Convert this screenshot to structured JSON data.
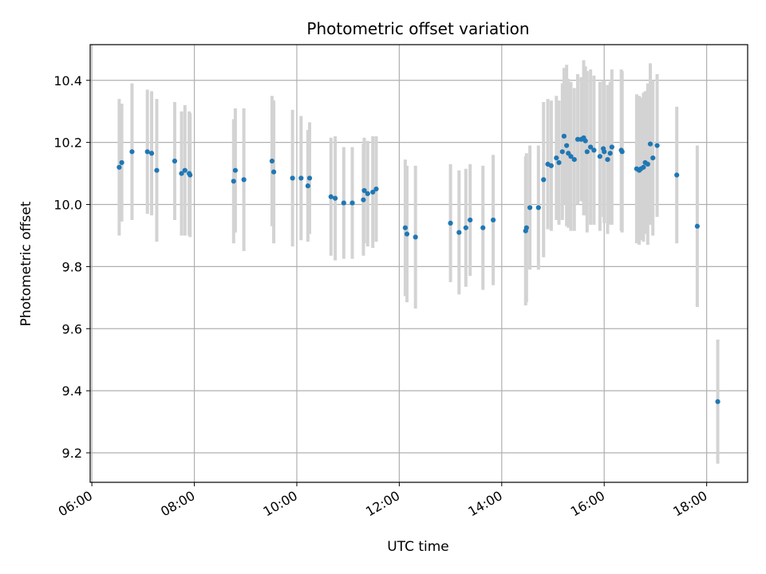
{
  "chart_data": {
    "type": "scatter",
    "title": "Photometric offset variation",
    "xlabel": "UTC time",
    "ylabel": "Photometric offset",
    "xlim": [
      "05:58",
      "18:48"
    ],
    "ylim": [
      9.105,
      10.515
    ],
    "x_ticks": [
      "06:00",
      "08:00",
      "10:00",
      "12:00",
      "14:00",
      "16:00",
      "18:00"
    ],
    "y_ticks": [
      "9.2",
      "9.4",
      "9.6",
      "9.8",
      "10.0",
      "10.2",
      "10.4"
    ],
    "grid": true,
    "marker_color": "#1f77b4",
    "errorbar_color": "#d3d3d3",
    "series": [
      {
        "x": [
          "06:32",
          "06:35",
          "06:47",
          "07:05",
          "07:10",
          "07:16",
          "07:37",
          "07:45",
          "07:49",
          "07:54",
          "07:55",
          "08:46",
          "08:48",
          "08:58",
          "09:31",
          "09:33",
          "09:55",
          "10:05",
          "10:13",
          "10:15",
          "10:40",
          "10:45",
          "10:55",
          "11:05",
          "11:18",
          "11:19",
          "11:23",
          "11:29",
          "11:33",
          "12:07",
          "12:09",
          "12:19",
          "13:00",
          "13:10",
          "13:18",
          "13:23",
          "13:38",
          "13:50",
          "14:28",
          "14:29",
          "14:33",
          "14:43",
          "14:49",
          "14:54",
          "14:58",
          "15:04",
          "15:07",
          "15:11",
          "15:13",
          "15:16",
          "15:18",
          "15:21",
          "15:25",
          "15:29",
          "15:33",
          "15:36",
          "15:38",
          "15:40",
          "15:44",
          "15:48",
          "15:55",
          "15:59",
          "16:00",
          "16:04",
          "16:07",
          "16:09",
          "16:20",
          "16:21",
          "16:38",
          "16:41",
          "16:43",
          "16:46",
          "16:48",
          "16:51",
          "16:54",
          "16:57",
          "17:02",
          "17:25",
          "17:49",
          "18:13"
        ],
        "y": [
          10.12,
          10.135,
          10.17,
          10.17,
          10.165,
          10.11,
          10.14,
          10.1,
          10.11,
          10.1,
          10.095,
          10.075,
          10.11,
          10.08,
          10.14,
          10.105,
          10.085,
          10.085,
          10.06,
          10.085,
          10.025,
          10.02,
          10.005,
          10.005,
          10.015,
          10.045,
          10.035,
          10.04,
          10.05,
          9.925,
          9.905,
          9.895,
          9.94,
          9.91,
          9.925,
          9.95,
          9.925,
          9.95,
          9.915,
          9.925,
          9.99,
          9.99,
          10.08,
          10.13,
          10.125,
          10.15,
          10.135,
          10.17,
          10.22,
          10.19,
          10.165,
          10.155,
          10.145,
          10.21,
          10.21,
          10.215,
          10.205,
          10.17,
          10.185,
          10.175,
          10.155,
          10.18,
          10.17,
          10.145,
          10.165,
          10.185,
          10.175,
          10.17,
          10.115,
          10.11,
          10.115,
          10.12,
          10.135,
          10.13,
          10.195,
          10.15,
          10.19,
          10.095,
          9.93,
          9.365
        ],
        "err": [
          0.22,
          0.19,
          0.22,
          0.2,
          0.2,
          0.23,
          0.19,
          0.2,
          0.21,
          0.2,
          0.2,
          0.2,
          0.2,
          0.23,
          0.21,
          0.23,
          0.22,
          0.2,
          0.18,
          0.18,
          0.19,
          0.2,
          0.18,
          0.18,
          0.18,
          0.17,
          0.17,
          0.18,
          0.17,
          0.22,
          0.22,
          0.23,
          0.19,
          0.2,
          0.19,
          0.18,
          0.2,
          0.21,
          0.24,
          0.24,
          0.2,
          0.2,
          0.25,
          0.21,
          0.21,
          0.2,
          0.2,
          0.22,
          0.22,
          0.26,
          0.24,
          0.24,
          0.23,
          0.21,
          0.2,
          0.25,
          0.24,
          0.26,
          0.25,
          0.24,
          0.24,
          0.22,
          0.23,
          0.24,
          0.23,
          0.25,
          0.26,
          0.26,
          0.24,
          0.24,
          0.23,
          0.24,
          0.23,
          0.26,
          0.26,
          0.25,
          0.23,
          0.22,
          0.26,
          0.2
        ]
      }
    ]
  }
}
